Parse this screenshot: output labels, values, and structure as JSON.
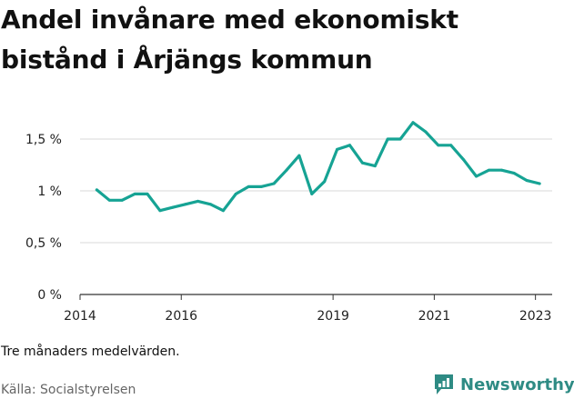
{
  "title": "Andel invånare med ekonomiskt bistånd i Årjängs kommun",
  "note": "Tre månaders medelvärden.",
  "source": "Källa: Socialstyrelsen",
  "brand": {
    "name": "Newsworthy",
    "color": "#2e8b84"
  },
  "colors": {
    "line": "#16a394",
    "grid": "#d9d9d9",
    "axis": "#333333"
  },
  "chart_data": {
    "type": "line",
    "title": "Andel invånare med ekonomiskt bistånd i Årjängs kommun",
    "xlabel": "",
    "ylabel": "",
    "xlim": [
      2014,
      2023.33
    ],
    "ylim": [
      0,
      1.5
    ],
    "grid": "horizontal",
    "x_ticks": [
      {
        "value": 2014,
        "label": "2014"
      },
      {
        "value": 2016,
        "label": "2016"
      },
      {
        "value": 2019,
        "label": "2019"
      },
      {
        "value": 2021,
        "label": "2021"
      },
      {
        "value": 2023,
        "label": "2023"
      }
    ],
    "y_ticks": [
      {
        "value": 0,
        "label": "0 %"
      },
      {
        "value": 0.5,
        "label": "0,5 %"
      },
      {
        "value": 1,
        "label": "1 %"
      },
      {
        "value": 1.5,
        "label": "1,5 %"
      }
    ],
    "series": [
      {
        "x": [
          2014.33,
          2014.58,
          2014.83,
          2015.08,
          2015.33,
          2015.58,
          2015.83,
          2016.08,
          2016.33,
          2016.58,
          2016.83,
          2017.08,
          2017.33,
          2017.58,
          2017.83,
          2018.08,
          2018.33,
          2018.58,
          2018.83,
          2019.08,
          2019.33,
          2019.58,
          2019.83,
          2020.08,
          2020.33,
          2020.58,
          2020.83,
          2021.08,
          2021.33,
          2021.58,
          2021.83,
          2022.08,
          2022.33,
          2022.58,
          2022.83,
          2023.08
        ],
        "values": [
          1.01,
          0.91,
          0.91,
          0.97,
          0.97,
          0.81,
          0.84,
          0.87,
          0.9,
          0.87,
          0.81,
          0.97,
          1.04,
          1.04,
          1.07,
          1.2,
          1.34,
          0.97,
          1.09,
          1.4,
          1.44,
          1.27,
          1.24,
          1.5,
          1.5,
          1.66,
          1.57,
          1.44,
          1.44,
          1.3,
          1.14,
          1.2,
          1.2,
          1.17,
          1.1,
          1.07
        ]
      }
    ]
  }
}
